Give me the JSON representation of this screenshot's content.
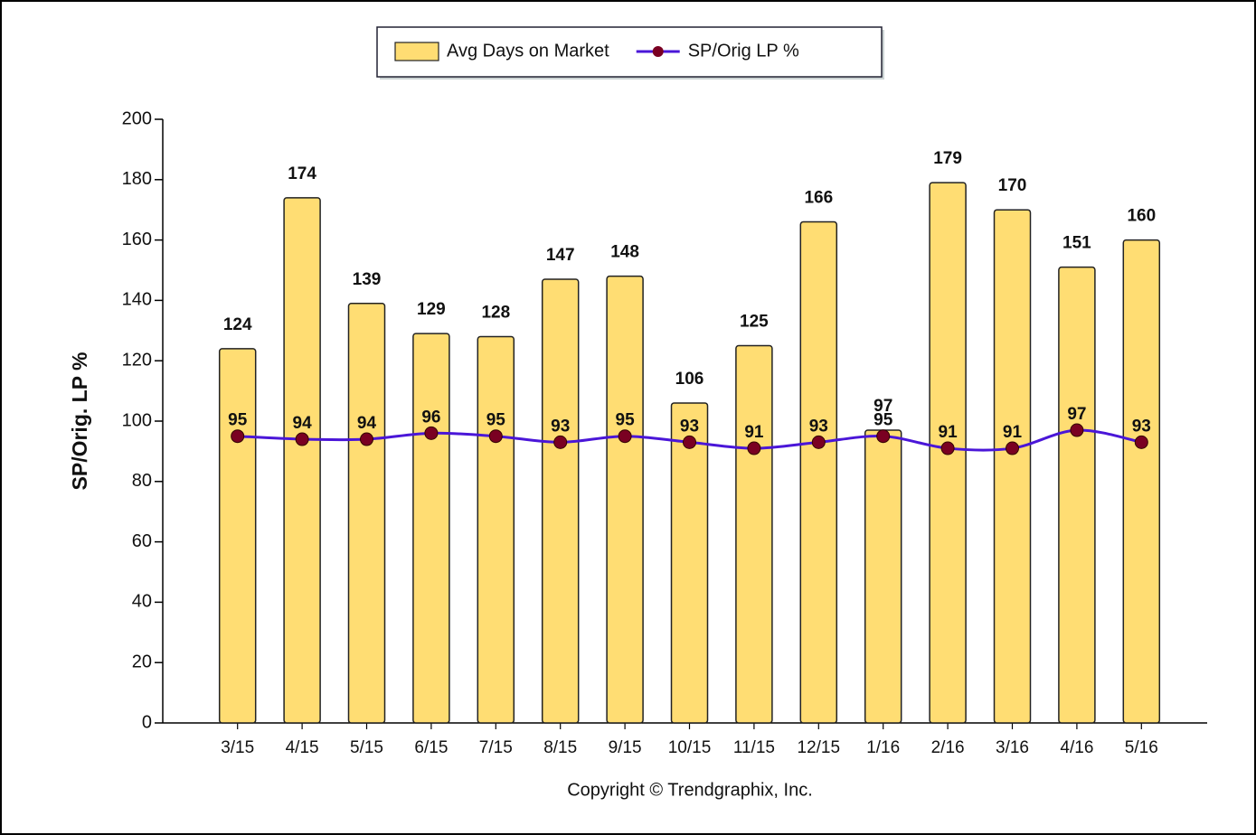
{
  "chart_data": {
    "type": "combo",
    "categories": [
      "3/15",
      "4/15",
      "5/15",
      "6/15",
      "7/15",
      "8/15",
      "9/15",
      "10/15",
      "11/15",
      "12/15",
      "1/16",
      "2/16",
      "3/16",
      "4/16",
      "5/16"
    ],
    "series": [
      {
        "name": "Avg Days on Market",
        "type": "bar",
        "color": "#ffdd73",
        "values": [
          124,
          174,
          139,
          129,
          128,
          147,
          148,
          106,
          125,
          166,
          97,
          179,
          170,
          151,
          160
        ]
      },
      {
        "name": "SP/Orig LP %",
        "type": "line",
        "color": "#4a16d8",
        "marker_color": "#7a0022",
        "values": [
          95,
          94,
          94,
          96,
          95,
          93,
          95,
          93,
          91,
          93,
          95,
          91,
          91,
          97,
          93
        ]
      }
    ],
    "ylabel": "SP/Orig. LP %",
    "footer": "Copyright © Trendgraphix, Inc.",
    "ylim": [
      0,
      200
    ],
    "yticks": [
      0,
      20,
      40,
      60,
      80,
      100,
      120,
      140,
      160,
      180,
      200
    ]
  }
}
